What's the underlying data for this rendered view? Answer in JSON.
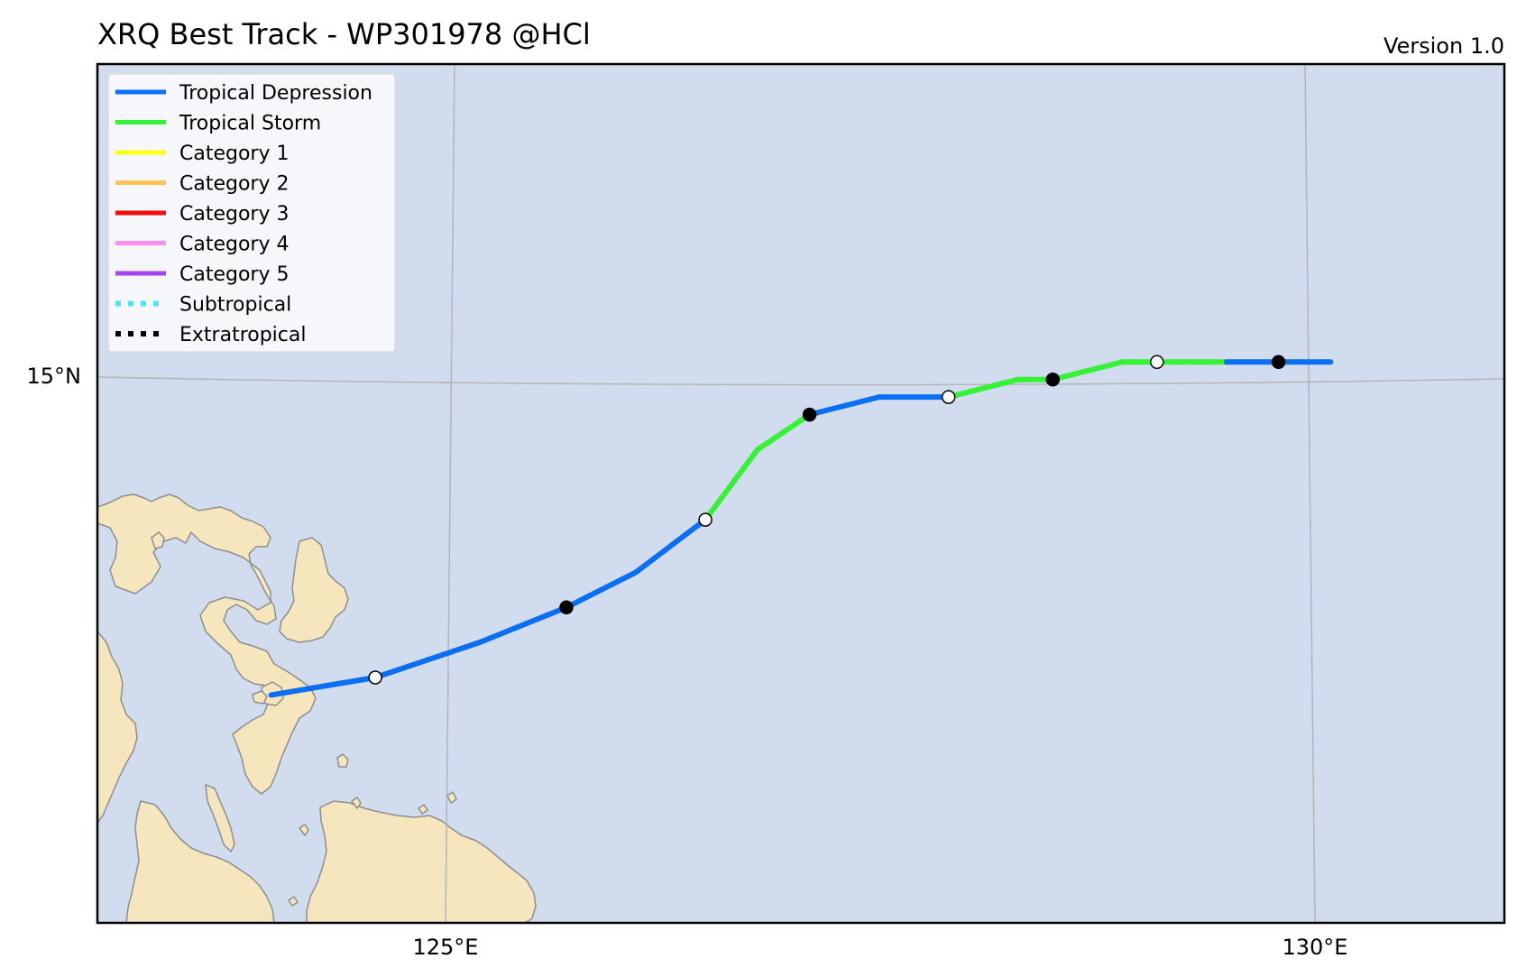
{
  "title": "XRQ Best Track - WP301978  @HCl",
  "version": "Version 1.0",
  "axes": {
    "lat_label": "15°N",
    "lon_labels": [
      "125°E",
      "130°E"
    ]
  },
  "colors": {
    "ocean": "#d1dcee",
    "land": "#f5e6be",
    "coast": "#8e8e8e",
    "grid": "#b5b5b5"
  },
  "legend": [
    {
      "label": "Tropical Depression",
      "color": "#0a6ff0",
      "style": "solid"
    },
    {
      "label": "Tropical Storm",
      "color": "#36f236",
      "style": "solid"
    },
    {
      "label": "Category 1",
      "color": "#ffff1a",
      "style": "solid"
    },
    {
      "label": "Category 2",
      "color": "#ffc356",
      "style": "solid"
    },
    {
      "label": "Category 3",
      "color": "#f20c0c",
      "style": "solid"
    },
    {
      "label": "Category 4",
      "color": "#ff8ef0",
      "style": "solid"
    },
    {
      "label": "Category 5",
      "color": "#a843f0",
      "style": "solid"
    },
    {
      "label": "Subtropical",
      "color": "#4be6f5",
      "style": "dotted"
    },
    {
      "label": "Extratropical",
      "color": "#000000",
      "style": "dotted"
    }
  ],
  "chart_data": {
    "type": "map-track",
    "lon_range": [
      123.0,
      131.1
    ],
    "lat_range": [
      11.9,
      16.8
    ],
    "track": [
      {
        "lon": 124.0,
        "lat": 13.2,
        "category": "Tropical Depression",
        "marker": "none"
      },
      {
        "lon": 124.6,
        "lat": 13.3,
        "category": "Tropical Depression",
        "marker": "open"
      },
      {
        "lon": 125.2,
        "lat": 13.5,
        "category": "Tropical Depression",
        "marker": "none"
      },
      {
        "lon": 125.7,
        "lat": 13.7,
        "category": "Tropical Depression",
        "marker": "filled"
      },
      {
        "lon": 126.1,
        "lat": 13.9,
        "category": "Tropical Depression",
        "marker": "none"
      },
      {
        "lon": 126.5,
        "lat": 14.2,
        "category": "Tropical Storm",
        "marker": "open"
      },
      {
        "lon": 126.8,
        "lat": 14.6,
        "category": "Tropical Storm",
        "marker": "none"
      },
      {
        "lon": 127.1,
        "lat": 14.8,
        "category": "Tropical Depression",
        "marker": "filled"
      },
      {
        "lon": 127.5,
        "lat": 14.9,
        "category": "Tropical Depression",
        "marker": "none"
      },
      {
        "lon": 127.9,
        "lat": 14.9,
        "category": "Tropical Storm",
        "marker": "open"
      },
      {
        "lon": 128.3,
        "lat": 15.0,
        "category": "Tropical Storm",
        "marker": "none"
      },
      {
        "lon": 128.5,
        "lat": 15.0,
        "category": "Tropical Storm",
        "marker": "filled"
      },
      {
        "lon": 128.9,
        "lat": 15.1,
        "category": "Tropical Storm",
        "marker": "none"
      },
      {
        "lon": 129.1,
        "lat": 15.1,
        "category": "Tropical Storm",
        "marker": "open"
      },
      {
        "lon": 129.5,
        "lat": 15.1,
        "category": "Tropical Depression",
        "marker": "none"
      },
      {
        "lon": 129.8,
        "lat": 15.1,
        "category": "Tropical Depression",
        "marker": "filled"
      },
      {
        "lon": 130.1,
        "lat": 15.1,
        "category": "Tropical Depression",
        "marker": "none"
      }
    ]
  }
}
